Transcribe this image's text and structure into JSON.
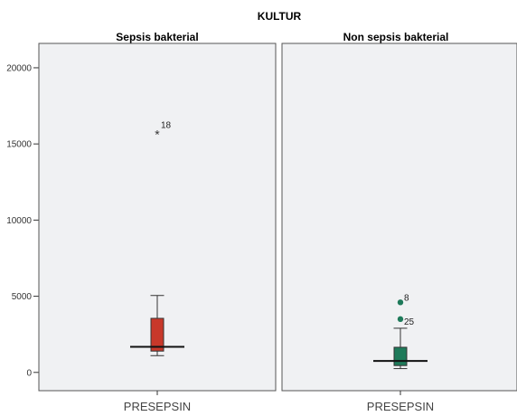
{
  "chart_data": {
    "type": "boxplot",
    "title": "KULTUR",
    "panels": [
      {
        "name": "Sepsis bakterial",
        "xlabel": "PRESEPSIN",
        "color": "#c8382a",
        "whisker_low": 1100,
        "q1": 1400,
        "median": 1680,
        "q3": 3550,
        "whisker_high": 5050,
        "outliers": [
          {
            "case": "18",
            "value": 15700,
            "marker": "extreme"
          }
        ]
      },
      {
        "name": "Non sepsis bakterial",
        "xlabel": "PRESEPSIN",
        "color": "#1e7a5a",
        "whisker_low": 250,
        "q1": 450,
        "median": 750,
        "q3": 1650,
        "whisker_high": 2900,
        "outliers": [
          {
            "case": "8",
            "value": 4600,
            "marker": "outlier"
          },
          {
            "case": "25",
            "value": 3500,
            "marker": "outlier"
          }
        ]
      }
    ],
    "y_ticks": [
      "0",
      "5000",
      "10000",
      "15000",
      "20000"
    ],
    "y_tick_values": [
      0,
      5000,
      10000,
      15000,
      20000
    ],
    "ylim": [
      -1200,
      21600
    ],
    "panel_background": "#f0f1f3",
    "grid": false
  }
}
